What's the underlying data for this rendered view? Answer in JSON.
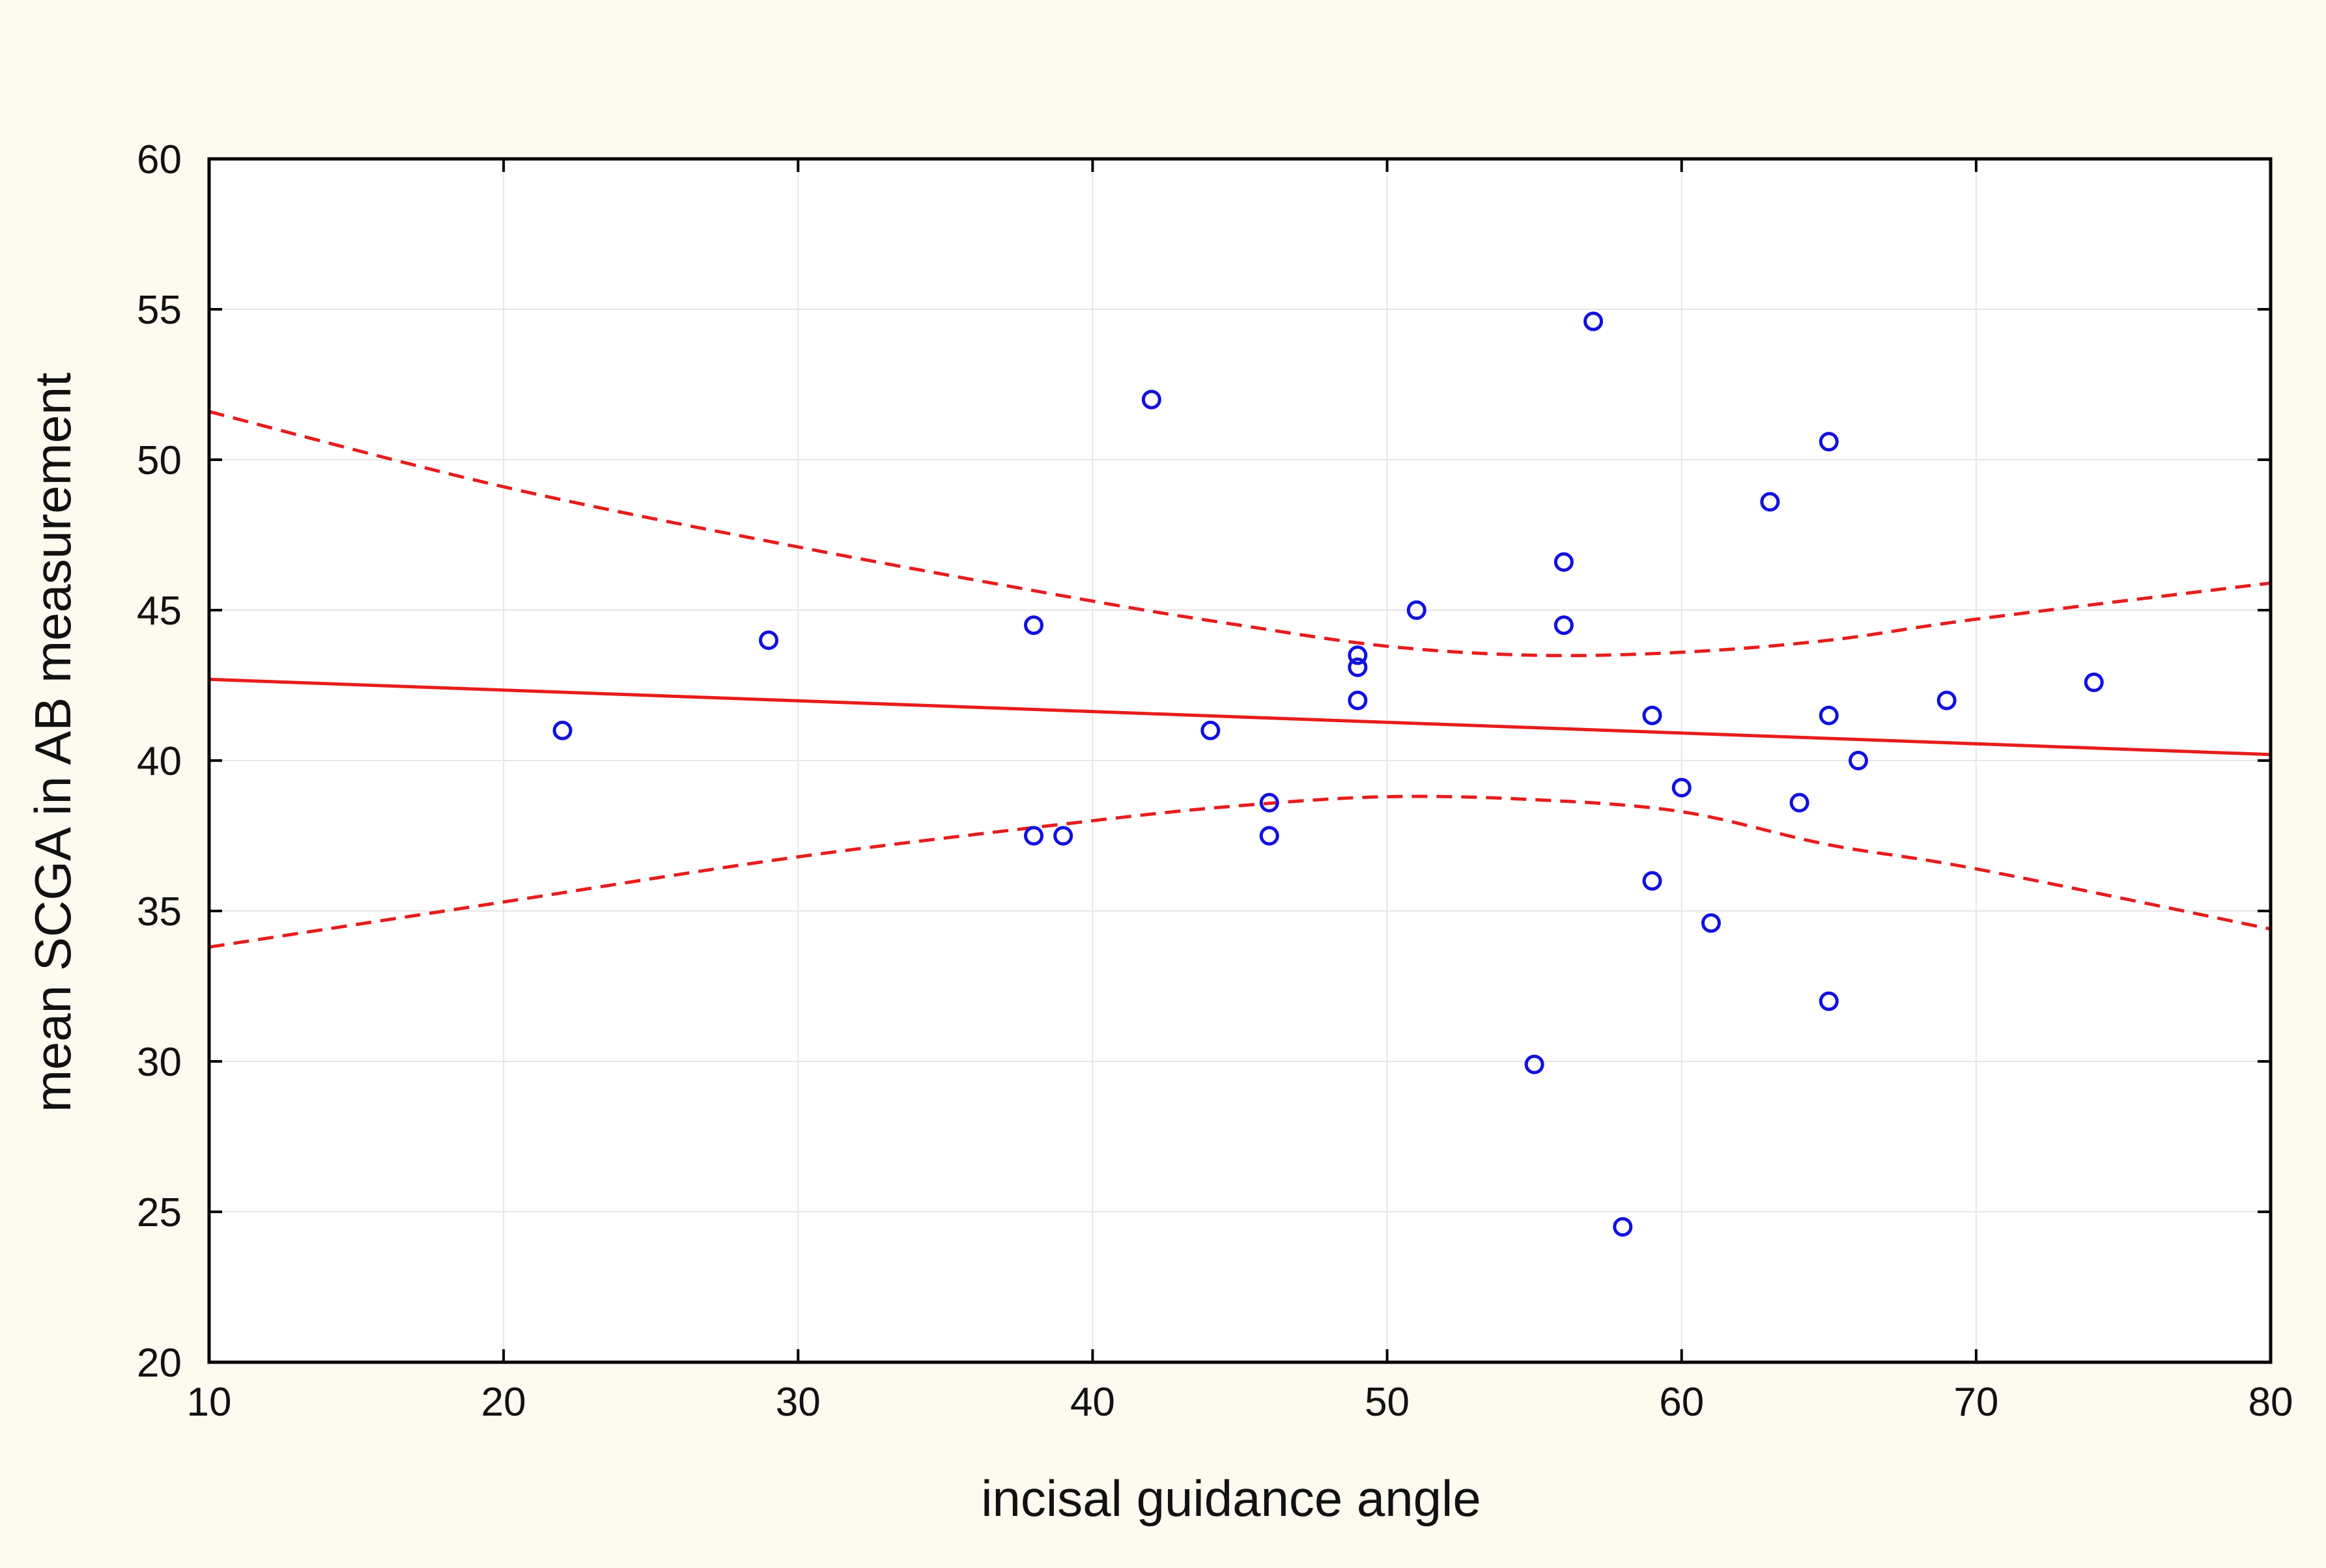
{
  "chart_data": {
    "type": "scatter",
    "title": "",
    "xlabel": "incisal guidance angle",
    "ylabel": "mean SCGA in AB measurement",
    "xlim": [
      10,
      80
    ],
    "ylim": [
      20,
      60
    ],
    "xticks": [
      10,
      20,
      30,
      40,
      50,
      60,
      70,
      80
    ],
    "yticks": [
      20,
      25,
      30,
      35,
      40,
      45,
      50,
      55,
      60
    ],
    "grid": true,
    "colors": {
      "points": "#1010e0",
      "fit": "#e81c1c",
      "background": "#fdfaf0",
      "plot_bg": "#ffffff"
    },
    "points": [
      [
        22,
        41.0
      ],
      [
        29,
        44.0
      ],
      [
        38,
        44.5
      ],
      [
        38,
        37.5
      ],
      [
        39,
        37.5
      ],
      [
        42,
        52.0
      ],
      [
        44,
        41.0
      ],
      [
        46,
        38.6
      ],
      [
        46,
        37.5
      ],
      [
        49,
        43.5
      ],
      [
        49,
        43.1
      ],
      [
        49,
        42.0
      ],
      [
        51,
        45.0
      ],
      [
        55,
        29.9
      ],
      [
        56,
        46.6
      ],
      [
        56,
        44.5
      ],
      [
        57,
        54.6
      ],
      [
        58,
        24.5
      ],
      [
        59,
        41.5
      ],
      [
        59,
        36.0
      ],
      [
        60,
        39.1
      ],
      [
        61,
        34.6
      ],
      [
        63,
        48.6
      ],
      [
        64,
        38.6
      ],
      [
        65,
        50.6
      ],
      [
        65,
        41.5
      ],
      [
        65,
        32.0
      ],
      [
        66,
        40.0
      ],
      [
        69,
        42.0
      ],
      [
        74,
        42.6
      ]
    ],
    "fit_line": {
      "type": "linear",
      "x": [
        10,
        80
      ],
      "y": [
        42.7,
        40.2
      ]
    },
    "confidence_band": {
      "style": "dashed",
      "upper": {
        "x": [
          10,
          20,
          30,
          40,
          45,
          50,
          55,
          60,
          65,
          70,
          80
        ],
        "y": [
          51.6,
          49.1,
          47.1,
          45.3,
          44.5,
          43.8,
          43.5,
          43.6,
          44.0,
          44.7,
          45.9
        ]
      },
      "lower": {
        "x": [
          10,
          20,
          30,
          40,
          45,
          50,
          55,
          60,
          65,
          70,
          80
        ],
        "y": [
          33.8,
          35.3,
          36.8,
          38.0,
          38.5,
          38.8,
          38.7,
          38.3,
          37.2,
          36.4,
          34.4
        ]
      }
    }
  }
}
